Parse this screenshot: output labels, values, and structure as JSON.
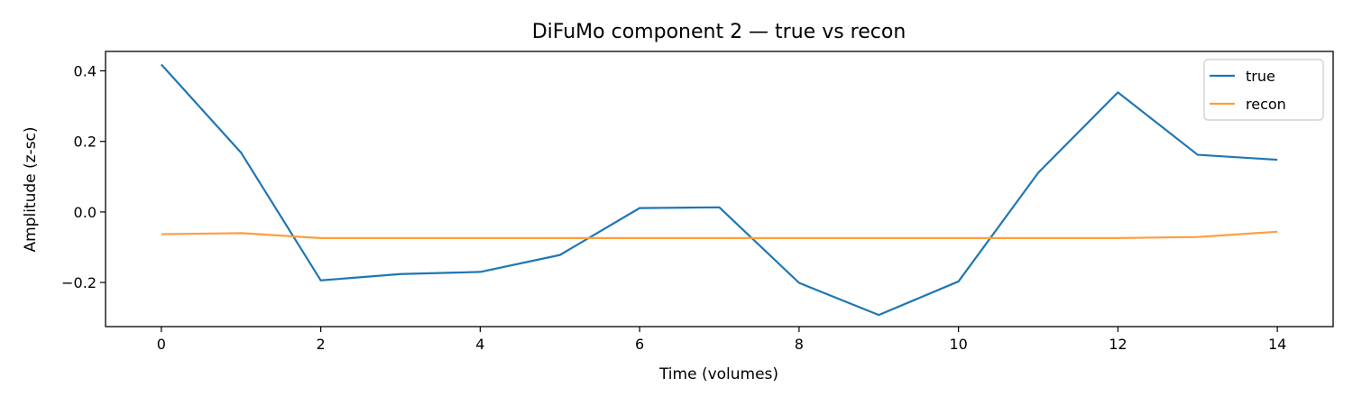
{
  "chart_data": {
    "type": "line",
    "title": "DiFuMo component 2 — true vs recon",
    "xlabel": "Time (volumes)",
    "ylabel": "Amplitude (z-sc)",
    "xlim": [
      -0.7,
      14.7
    ],
    "ylim": [
      -0.325,
      0.455
    ],
    "xticks": [
      0,
      2,
      4,
      6,
      8,
      10,
      12,
      14
    ],
    "xtick_labels": [
      "0",
      "2",
      "4",
      "6",
      "8",
      "10",
      "12",
      "14"
    ],
    "yticks": [
      -0.2,
      0.0,
      0.2,
      0.4
    ],
    "ytick_labels": [
      "−0.2",
      "0.0",
      "0.2",
      "0.4"
    ],
    "grid": false,
    "legend_position": "top-right",
    "x": [
      0,
      1,
      2,
      3,
      4,
      5,
      6,
      7,
      8,
      9,
      10,
      11,
      12,
      13,
      14
    ],
    "series": [
      {
        "name": "true",
        "color": "#1f77b4",
        "values": [
          0.418,
          0.168,
          -0.194,
          -0.176,
          -0.17,
          -0.122,
          0.011,
          0.013,
          -0.201,
          -0.292,
          -0.197,
          0.111,
          0.339,
          0.162,
          0.148
        ]
      },
      {
        "name": "recon",
        "color": "#ff9e3d",
        "values": [
          -0.063,
          -0.06,
          -0.074,
          -0.074,
          -0.074,
          -0.074,
          -0.074,
          -0.074,
          -0.074,
          -0.074,
          -0.074,
          -0.074,
          -0.074,
          -0.071,
          -0.056
        ]
      }
    ]
  }
}
